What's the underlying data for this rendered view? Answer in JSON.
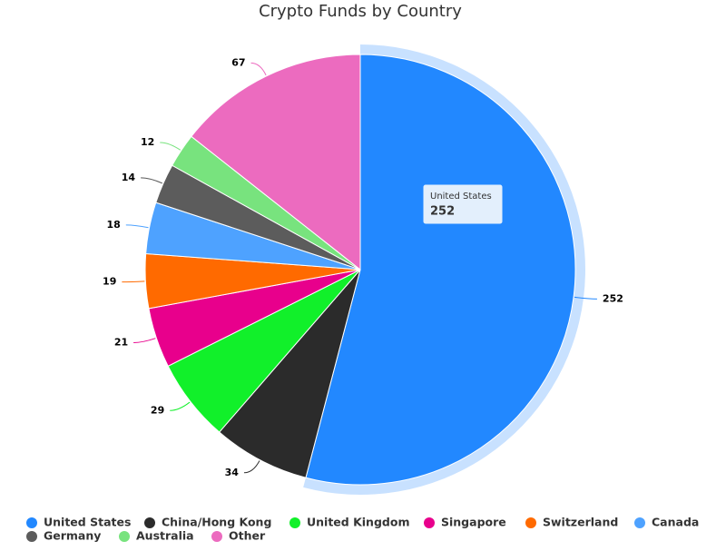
{
  "chart_data": {
    "type": "pie",
    "title": "Crypto Funds by Country",
    "categories": [
      "United States",
      "China/Hong Kong",
      "United Kingdom",
      "Singapore",
      "Switzerland",
      "Canada",
      "Germany",
      "Australia",
      "Other"
    ],
    "values": [
      252,
      34,
      29,
      21,
      19,
      18,
      14,
      12,
      67
    ],
    "colors": [
      "#2288ff",
      "#2b2b2b",
      "#11f02a",
      "#e8008c",
      "#ff6a00",
      "#4ea2ff",
      "#5c5c5c",
      "#78e37e",
      "#ec6bbf"
    ],
    "legend": "bottom"
  }
}
